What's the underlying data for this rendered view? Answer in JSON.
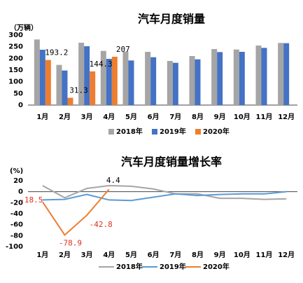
{
  "chart_data": [
    {
      "type": "bar",
      "title": "汽车月度销量",
      "y_label": "（万辆）",
      "categories": [
        "1月",
        "2月",
        "3月",
        "4月",
        "5月",
        "6月",
        "7月",
        "8月",
        "9月",
        "10月",
        "11月",
        "12月"
      ],
      "series": [
        {
          "name": "2018年",
          "color": "#a5a5a5",
          "values": [
            281,
            172,
            267,
            232,
            229,
            228,
            189,
            210,
            240,
            238,
            255,
            266
          ]
        },
        {
          "name": "2019年",
          "color": "#4472c4",
          "values": [
            237,
            148,
            252,
            198,
            191,
            205,
            181,
            196,
            227,
            228,
            245,
            265
          ]
        },
        {
          "name": "2020年",
          "color": "#ed7d31",
          "values": [
            193.2,
            31.3,
            144.3,
            207,
            null,
            null,
            null,
            null,
            null,
            null,
            null,
            null
          ],
          "show_labels": true
        }
      ],
      "ylim": [
        0,
        300
      ],
      "yticks": [
        0,
        50,
        100,
        150,
        200,
        250,
        300
      ],
      "legend": "bottom"
    },
    {
      "type": "line",
      "title": "汽车月度销量增长率",
      "y_label": "(%)",
      "categories": [
        "1月",
        "2月",
        "3月",
        "4月",
        "5月",
        "6月",
        "7月",
        "8月",
        "9月",
        "10月",
        "11月",
        "12月"
      ],
      "series": [
        {
          "name": "2018年",
          "color": "#a5a5a5",
          "values": [
            11,
            -11,
            6,
            11,
            10,
            5,
            -4,
            -4,
            -12,
            -12,
            -14,
            -13
          ]
        },
        {
          "name": "2019年",
          "color": "#5b9bd5",
          "values": [
            -15,
            -14,
            -5,
            -15,
            -16,
            -10,
            -4,
            -7,
            -5,
            -4,
            -4,
            0
          ]
        },
        {
          "name": "2020年",
          "color": "#ed7d31",
          "values": [
            -18.5,
            -78.9,
            -42.8,
            4.4,
            null,
            null,
            null,
            null,
            null,
            null,
            null,
            null
          ],
          "show_labels": true
        }
      ],
      "ylim": [
        -100,
        20
      ],
      "yticks": [
        20,
        0,
        -20,
        -40,
        -60,
        -80,
        -100
      ],
      "legend": "bottom"
    }
  ]
}
